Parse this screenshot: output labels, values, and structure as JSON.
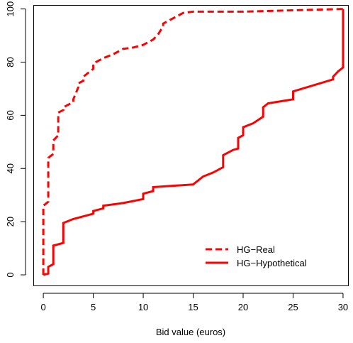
{
  "chart_data": {
    "type": "line",
    "title": "",
    "xlabel": "Bid value (euros)",
    "ylabel": "",
    "xlim": [
      -1,
      30.5
    ],
    "ylim": [
      -4,
      101.5
    ],
    "x_ticks": [
      0,
      5,
      10,
      15,
      20,
      25,
      30
    ],
    "x_tick_labels": [
      "0",
      "5",
      "10",
      "15",
      "20",
      "25",
      "30"
    ],
    "y_ticks": [
      0,
      20,
      40,
      60,
      80,
      100
    ],
    "y_tick_labels": [
      "0",
      "20",
      "40",
      "60",
      "80",
      "100"
    ],
    "grid": false,
    "legend_position": "bottom-right",
    "series": [
      {
        "name": "HG−Real",
        "color": "#ff0000",
        "style": "dashed",
        "points": [
          [
            0,
            0
          ],
          [
            0,
            26
          ],
          [
            0.5,
            27.5
          ],
          [
            0.5,
            44
          ],
          [
            1,
            45.5
          ],
          [
            1,
            50.5
          ],
          [
            1.5,
            52.5
          ],
          [
            1.5,
            61
          ],
          [
            2,
            62
          ],
          [
            2,
            63
          ],
          [
            3,
            65
          ],
          [
            3,
            66
          ],
          [
            3.5,
            70.5
          ],
          [
            3.5,
            72
          ],
          [
            4,
            73
          ],
          [
            4,
            74.5
          ],
          [
            5,
            77.5
          ],
          [
            5,
            79.5
          ],
          [
            6,
            81.5
          ],
          [
            7,
            83
          ],
          [
            8,
            85
          ],
          [
            9,
            85.5
          ],
          [
            10,
            86.5
          ],
          [
            11,
            88.5
          ],
          [
            11.5,
            90.5
          ],
          [
            12,
            93.5
          ],
          [
            12,
            94.5
          ],
          [
            13,
            96.5
          ],
          [
            14,
            98.5
          ],
          [
            15,
            99
          ],
          [
            20,
            99
          ],
          [
            30,
            100
          ],
          [
            30,
            99
          ]
        ]
      },
      {
        "name": "HG−Hypothetical",
        "color": "#ff0000",
        "style": "solid",
        "points": [
          [
            0,
            0
          ],
          [
            0.5,
            0.5
          ],
          [
            0.5,
            3
          ],
          [
            1,
            4
          ],
          [
            1,
            11
          ],
          [
            1.5,
            11.5
          ],
          [
            2,
            12
          ],
          [
            2,
            19.5
          ],
          [
            3,
            21
          ],
          [
            4,
            22
          ],
          [
            5,
            23
          ],
          [
            5,
            24
          ],
          [
            6,
            25
          ],
          [
            6,
            26
          ],
          [
            8,
            27
          ],
          [
            10,
            28.5
          ],
          [
            10,
            30.5
          ],
          [
            11,
            31.5
          ],
          [
            11,
            33
          ],
          [
            15,
            34
          ],
          [
            16,
            37
          ],
          [
            17,
            38.5
          ],
          [
            18,
            40.5
          ],
          [
            18,
            45
          ],
          [
            19,
            47
          ],
          [
            19.5,
            47.5
          ],
          [
            19.5,
            51.5
          ],
          [
            20,
            52.5
          ],
          [
            20,
            55.5
          ],
          [
            21,
            57
          ],
          [
            22,
            59.5
          ],
          [
            22,
            63
          ],
          [
            22.5,
            64.5
          ],
          [
            25,
            66
          ],
          [
            25,
            69
          ],
          [
            29,
            73.5
          ],
          [
            29,
            74.5
          ],
          [
            29.5,
            76.5
          ],
          [
            30,
            78
          ],
          [
            30,
            100
          ]
        ]
      }
    ]
  }
}
